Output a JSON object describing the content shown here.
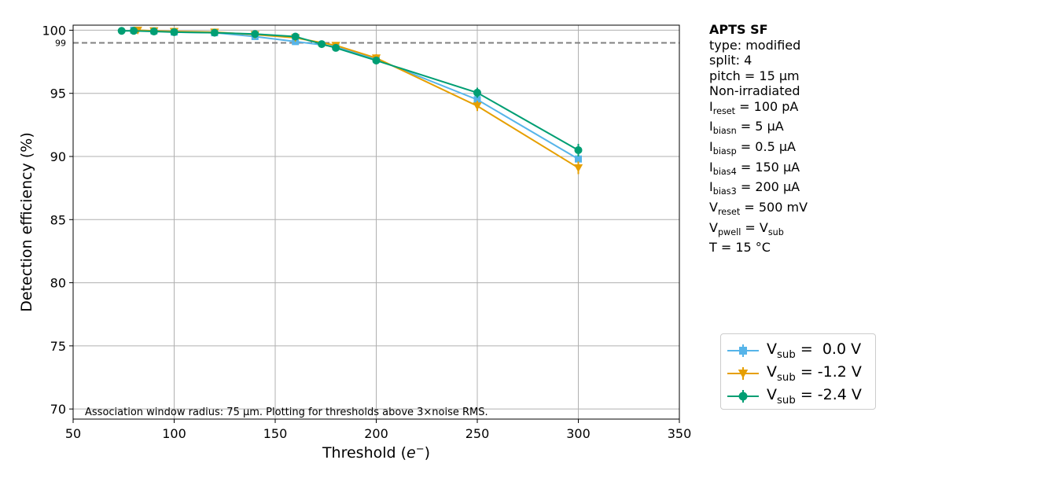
{
  "chart_data": {
    "type": "line",
    "xlabel_prefix": "Threshold (",
    "xlabel_var": "e",
    "xlabel_sup": "−",
    "xlabel_suffix": ")",
    "ylabel": "Detection efficiency (%)",
    "xlim": [
      50,
      350
    ],
    "ylim": [
      69.2,
      100.4
    ],
    "xticks": [
      50,
      100,
      150,
      200,
      250,
      300,
      350
    ],
    "yticks": [
      70,
      75,
      80,
      85,
      90,
      95,
      100
    ],
    "grid": true,
    "reference_line": {
      "y": 99,
      "label": "99",
      "style": "dashed",
      "color": "#808080"
    },
    "annotation": "Association window radius: 75 µm. Plotting for thresholds above 3×noise RMS.",
    "series": [
      {
        "name": "V_sub = 0.0 V",
        "legend_var": "V",
        "legend_sub": "sub",
        "legend_value": " =  0.0 V",
        "color": "#56b4e9",
        "marker": "square",
        "x": [
          80,
          90,
          100,
          120,
          140,
          160,
          180,
          200,
          250,
          300
        ],
        "y": [
          100.0,
          99.95,
          99.85,
          99.8,
          99.5,
          99.1,
          98.7,
          97.7,
          94.5,
          89.8
        ],
        "err": [
          0.05,
          0.05,
          0.05,
          0.1,
          0.15,
          0.2,
          0.25,
          0.3,
          0.4,
          0.5
        ]
      },
      {
        "name": "V_sub = -1.2 V",
        "legend_var": "V",
        "legend_sub": "sub",
        "legend_value": " = -1.2 V",
        "color": "#e69f00",
        "marker": "triangle-down",
        "x": [
          82,
          90,
          100,
          120,
          140,
          160,
          180,
          200,
          250,
          300
        ],
        "y": [
          100.0,
          99.95,
          99.9,
          99.85,
          99.65,
          99.4,
          98.8,
          97.8,
          94.0,
          89.1
        ],
        "err": [
          0.05,
          0.05,
          0.05,
          0.1,
          0.15,
          0.2,
          0.25,
          0.3,
          0.4,
          0.5
        ]
      },
      {
        "name": "V_sub = -2.4 V",
        "legend_var": "V",
        "legend_sub": "sub",
        "legend_value": " = -2.4 V",
        "color": "#009e73",
        "marker": "circle",
        "x": [
          74,
          80,
          90,
          100,
          120,
          140,
          160,
          173,
          180,
          200,
          250,
          300
        ],
        "y": [
          99.95,
          99.95,
          99.9,
          99.85,
          99.8,
          99.7,
          99.5,
          98.9,
          98.6,
          97.6,
          95.05,
          90.5
        ],
        "err": [
          0.05,
          0.05,
          0.05,
          0.05,
          0.1,
          0.15,
          0.2,
          0.25,
          0.25,
          0.3,
          0.4,
          0.5
        ]
      }
    ]
  },
  "info": {
    "title": "APTS SF",
    "lines": [
      {
        "text": "type: modified"
      },
      {
        "text": "split:  4"
      },
      {
        "text": "pitch = 15 µm"
      },
      {
        "text": "Non-irradiated"
      },
      {
        "var": "I",
        "sub": "reset",
        "rest": " = 100 pA"
      },
      {
        "var": "I",
        "sub": "biasn",
        "rest": " = 5 µA"
      },
      {
        "var": "I",
        "sub": "biasp",
        "rest": " = 0.5 µA"
      },
      {
        "var": "I",
        "sub": "bias4",
        "rest": " = 150 µA"
      },
      {
        "var": "I",
        "sub": "bias3",
        "rest": " = 200 µA"
      },
      {
        "var": "V",
        "sub": "reset",
        "rest": " = 500 mV"
      },
      {
        "var": "V",
        "sub": "pwell",
        "rest": " = ",
        "var2": "V",
        "sub2": "sub"
      },
      {
        "var": "T",
        "rest": " = 15 °C"
      }
    ]
  }
}
